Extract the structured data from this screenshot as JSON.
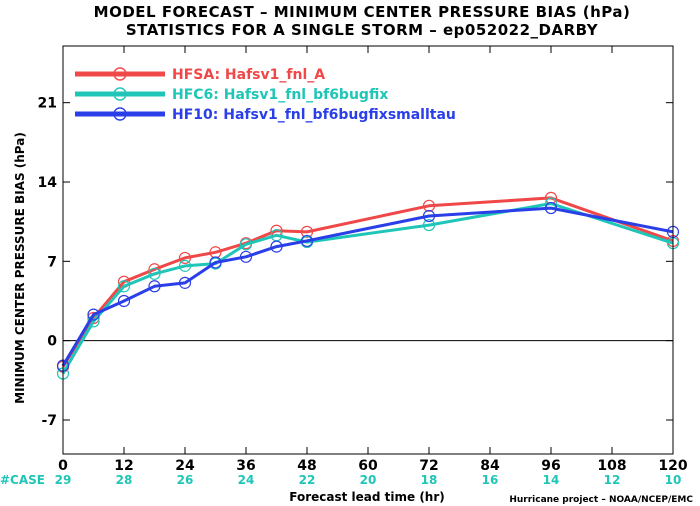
{
  "titles": {
    "line1": "MODEL FORECAST – MINIMUM CENTER PRESSURE BIAS (hPa)",
    "line2": "STATISTICS FOR A SINGLE STORM – ep052022_DARBY"
  },
  "credit": "Hurricane project – NOAA/NCEP/EMC",
  "case_row": {
    "label": "#CASE",
    "color": "#1fc6b8",
    "x": [
      0,
      12,
      24,
      36,
      48,
      60,
      72,
      84,
      96,
      108,
      120
    ],
    "counts": [
      "29",
      "28",
      "26",
      "24",
      "22",
      "20",
      "18",
      "16",
      "14",
      "12",
      "10"
    ]
  },
  "chart_data": {
    "type": "line",
    "xlabel": "Forecast lead time (hr)",
    "ylabel": "MINIMUM CENTER PRESSURE BIAS (hPa)",
    "xlim": [
      0,
      120
    ],
    "ylim": [
      -10,
      26
    ],
    "x_ticks": [
      0,
      12,
      24,
      36,
      48,
      60,
      72,
      84,
      96,
      108,
      120
    ],
    "x_tick_labels": [
      "0",
      "12",
      "24",
      "36",
      "48",
      "60",
      "72",
      "84",
      "96",
      "108",
      "120"
    ],
    "y_ticks": [
      -7,
      0,
      7,
      14,
      21
    ],
    "y_tick_labels": [
      "-7",
      "0",
      "7",
      "14",
      "21"
    ],
    "zero_line": true,
    "legend_position": "top-left",
    "series": [
      {
        "name": "HFSA: Hafsv1_fnl_A",
        "color": "#f04848",
        "x": [
          0,
          6,
          12,
          18,
          24,
          30,
          36,
          42,
          48,
          72,
          96,
          120
        ],
        "values": [
          -2.3,
          2.0,
          5.2,
          6.3,
          7.3,
          7.8,
          8.6,
          9.7,
          9.6,
          11.9,
          12.6,
          8.8
        ]
      },
      {
        "name": "HFC6: Hafsv1_fnl_bf6bugfix",
        "color": "#1fc6b8",
        "x": [
          0,
          6,
          12,
          18,
          24,
          30,
          36,
          42,
          48,
          72,
          96,
          120
        ],
        "values": [
          -2.9,
          1.7,
          4.8,
          5.9,
          6.6,
          6.8,
          8.5,
          9.3,
          8.7,
          10.2,
          12.1,
          8.6
        ]
      },
      {
        "name": "HF10: Hafsv1_fnl_bf6bugfixsmalltau",
        "color": "#2a3fe8",
        "x": [
          0,
          6,
          12,
          18,
          24,
          30,
          36,
          42,
          48,
          72,
          96,
          120
        ],
        "values": [
          -2.2,
          2.3,
          3.5,
          4.8,
          5.1,
          6.9,
          7.4,
          8.3,
          8.8,
          11.0,
          11.7,
          9.6
        ]
      }
    ]
  }
}
